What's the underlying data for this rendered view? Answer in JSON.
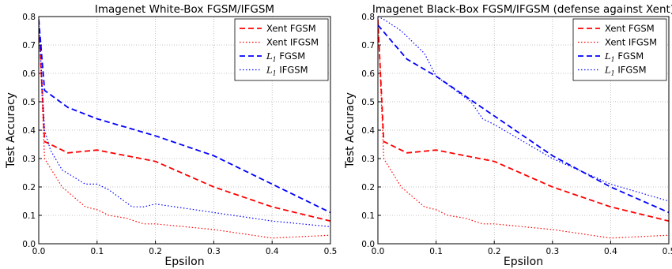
{
  "chart_data": [
    {
      "type": "line",
      "title": "Imagenet White-Box FGSM/IFGSM",
      "xlabel": "Epsilon",
      "ylabel": "Test Accuracy",
      "xlim": [
        0.0,
        0.5
      ],
      "ylim": [
        0.0,
        0.8
      ],
      "x_ticks": [
        "0.0",
        "0.1",
        "0.2",
        "0.3",
        "0.4",
        "0.5"
      ],
      "y_ticks": [
        "0.0",
        "0.1",
        "0.2",
        "0.3",
        "0.4",
        "0.5",
        "0.6",
        "0.7",
        "0.8"
      ],
      "grid": true,
      "legend_position": "top-right",
      "series": [
        {
          "name": "Xent FGSM",
          "color": "#ff0000",
          "dash": "dashed",
          "x": [
            0,
            0.01,
            0.05,
            0.1,
            0.15,
            0.2,
            0.3,
            0.4,
            0.5
          ],
          "y": [
            0.79,
            0.36,
            0.32,
            0.33,
            0.31,
            0.29,
            0.2,
            0.13,
            0.08
          ]
        },
        {
          "name": "Xent IFGSM",
          "color": "#ff0000",
          "dash": "dotted",
          "x": [
            0,
            0.01,
            0.04,
            0.08,
            0.1,
            0.12,
            0.15,
            0.18,
            0.2,
            0.3,
            0.4,
            0.5
          ],
          "y": [
            0.79,
            0.3,
            0.2,
            0.13,
            0.12,
            0.1,
            0.09,
            0.07,
            0.07,
            0.05,
            0.02,
            0.03
          ]
        },
        {
          "name": "L1 FGSM",
          "name_parts": [
            "L",
            "1",
            " FGSM"
          ],
          "color": "#0000ff",
          "dash": "dashed",
          "x": [
            0,
            0.01,
            0.05,
            0.1,
            0.2,
            0.3,
            0.4,
            0.5
          ],
          "y": [
            0.79,
            0.54,
            0.48,
            0.44,
            0.38,
            0.31,
            0.21,
            0.11
          ]
        },
        {
          "name": "L1 IFGSM",
          "name_parts": [
            "L",
            "1",
            " IFGSM"
          ],
          "color": "#0000ff",
          "dash": "dotted",
          "x": [
            0,
            0.01,
            0.02,
            0.04,
            0.08,
            0.1,
            0.12,
            0.16,
            0.18,
            0.2,
            0.3,
            0.4,
            0.5
          ],
          "y": [
            0.79,
            0.4,
            0.33,
            0.26,
            0.21,
            0.21,
            0.19,
            0.13,
            0.13,
            0.14,
            0.11,
            0.08,
            0.06
          ]
        }
      ]
    },
    {
      "type": "line",
      "title": "Imagenet Black-Box FGSM/IFGSM (defense against Xent)",
      "xlabel": "Epsilon",
      "ylabel": "Test Accuracy",
      "xlim": [
        0.0,
        0.5
      ],
      "ylim": [
        0.0,
        0.8
      ],
      "x_ticks": [
        "0.0",
        "0.1",
        "0.2",
        "0.3",
        "0.4",
        "0.5"
      ],
      "y_ticks": [
        "0.0",
        "0.1",
        "0.2",
        "0.3",
        "0.4",
        "0.5",
        "0.6",
        "0.7",
        "0.8"
      ],
      "grid": true,
      "legend_position": "top-right",
      "series": [
        {
          "name": "Xent FGSM",
          "color": "#ff0000",
          "dash": "dashed",
          "x": [
            0,
            0.01,
            0.05,
            0.1,
            0.15,
            0.2,
            0.3,
            0.4,
            0.5
          ],
          "y": [
            0.79,
            0.36,
            0.32,
            0.33,
            0.31,
            0.29,
            0.2,
            0.13,
            0.08
          ]
        },
        {
          "name": "Xent IFGSM",
          "color": "#ff0000",
          "dash": "dotted",
          "x": [
            0,
            0.01,
            0.04,
            0.08,
            0.1,
            0.12,
            0.15,
            0.18,
            0.2,
            0.3,
            0.4,
            0.5
          ],
          "y": [
            0.79,
            0.3,
            0.2,
            0.13,
            0.12,
            0.1,
            0.09,
            0.07,
            0.07,
            0.05,
            0.02,
            0.03
          ]
        },
        {
          "name": "L1 FGSM",
          "name_parts": [
            "L",
            "1",
            " FGSM"
          ],
          "color": "#0000ff",
          "dash": "dashed",
          "x": [
            0,
            0.05,
            0.1,
            0.15,
            0.2,
            0.3,
            0.4,
            0.5
          ],
          "y": [
            0.77,
            0.65,
            0.59,
            0.52,
            0.45,
            0.31,
            0.2,
            0.11
          ]
        },
        {
          "name": "L1 IFGSM",
          "name_parts": [
            "L",
            "1",
            " IFGSM"
          ],
          "color": "#0000ff",
          "dash": "dotted",
          "x": [
            0,
            0.01,
            0.04,
            0.08,
            0.1,
            0.12,
            0.16,
            0.18,
            0.2,
            0.3,
            0.4,
            0.5
          ],
          "y": [
            0.8,
            0.79,
            0.75,
            0.67,
            0.59,
            0.56,
            0.5,
            0.44,
            0.42,
            0.3,
            0.21,
            0.15
          ]
        }
      ]
    }
  ]
}
